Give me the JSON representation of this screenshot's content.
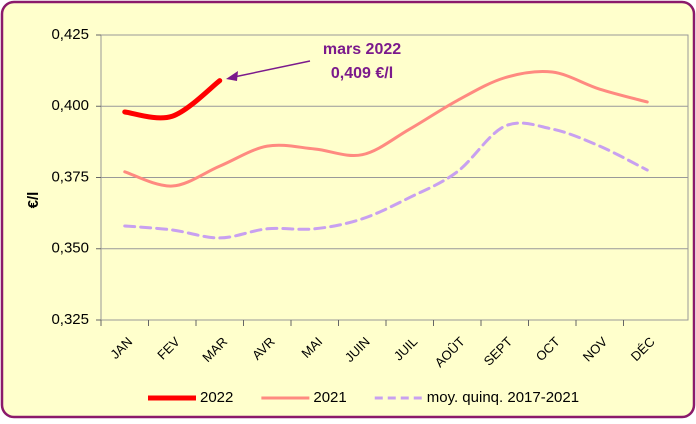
{
  "chart_data": {
    "type": "line",
    "y_label": "€/l",
    "annotation": {
      "lines": [
        "mars 2022",
        "0,409 €/l"
      ],
      "color": "#7b1a8c"
    },
    "categories": [
      "JAN",
      "FEV",
      "MAR",
      "AVR",
      "MAI",
      "JUIN",
      "JUIL",
      "AOÛT",
      "SEPT",
      "OCT",
      "NOV",
      "DÉC"
    ],
    "series": [
      {
        "name": "2022",
        "color": "#ff0000",
        "width": 5,
        "dashed": false,
        "values": [
          0.398,
          0.3965,
          0.409,
          null,
          null,
          null,
          null,
          null,
          null,
          null,
          null,
          null
        ]
      },
      {
        "name": "2021",
        "color": "#ff8a80",
        "width": 3,
        "dashed": false,
        "values": [
          0.377,
          0.372,
          0.379,
          0.386,
          0.385,
          0.383,
          0.392,
          0.402,
          0.41,
          0.412,
          0.406,
          0.4015
        ]
      },
      {
        "name": "moy. quinq. 2017-2021",
        "color": "#c8a0f0",
        "width": 3,
        "dashed": true,
        "values": [
          0.358,
          0.3566,
          0.3538,
          0.357,
          0.357,
          0.3605,
          0.368,
          0.377,
          0.393,
          0.392,
          0.386,
          0.3776
        ]
      }
    ],
    "ylim": [
      0.325,
      0.425
    ],
    "yticks": [
      {
        "value": 0.325,
        "label": "0,325"
      },
      {
        "value": 0.35,
        "label": "0,350"
      },
      {
        "value": 0.375,
        "label": "0,375"
      },
      {
        "value": 0.4,
        "label": "0,400"
      },
      {
        "value": 0.425,
        "label": "0,425"
      }
    ],
    "grid": true
  }
}
